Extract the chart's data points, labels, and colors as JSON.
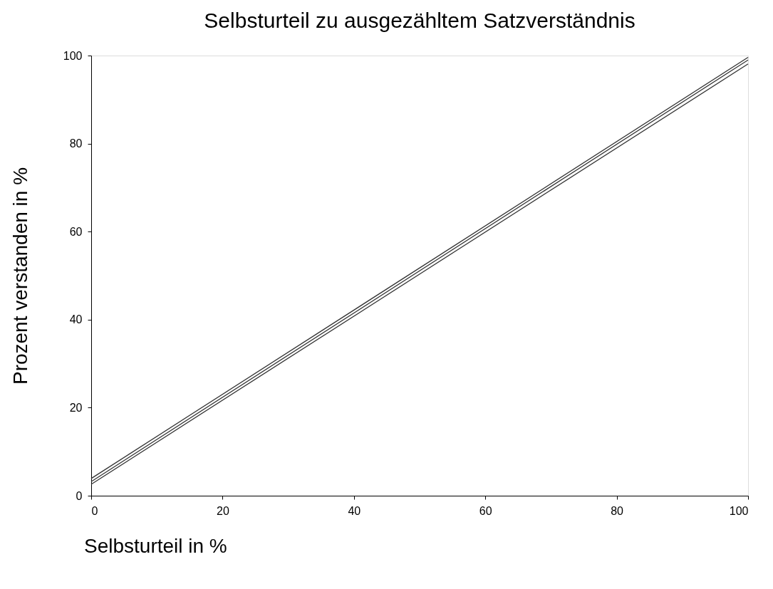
{
  "chart_data": {
    "type": "line",
    "title": "Selbsturteil zu ausgezähltem Satzverständnis",
    "xlabel": "Selbsturteil in %",
    "ylabel": "Prozent verstanden in %",
    "x": [
      0,
      100
    ],
    "series": [
      {
        "color": "#333333",
        "values": [
          3.9,
          99.6
        ]
      },
      {
        "color": "#333333",
        "values": [
          3.2,
          99.0
        ]
      },
      {
        "color": "#333333",
        "values": [
          2.6,
          98.1
        ]
      }
    ],
    "xlim": [
      0,
      100
    ],
    "xticks": [
      0,
      20,
      40,
      60,
      80,
      100
    ],
    "ylim": [
      0,
      100
    ],
    "yticks": [
      0,
      20,
      40,
      60,
      80,
      100
    ],
    "grid": false,
    "marker": "none",
    "line_style": "solid"
  }
}
